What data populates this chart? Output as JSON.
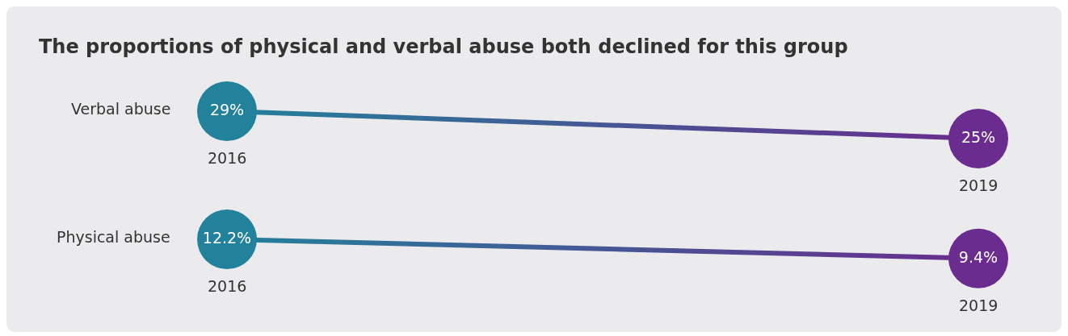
{
  "chart_data": {
    "type": "other",
    "title": "The proportions of physical and verbal abuse both declined for this group",
    "categories": [
      "Verbal abuse",
      "Physical abuse"
    ],
    "series": [
      {
        "name": "2016",
        "color": "#22819b",
        "values": [
          29,
          12.2
        ],
        "value_labels": [
          "29%",
          "12.2%"
        ]
      },
      {
        "name": "2019",
        "color": "#6a2c8e",
        "values": [
          25,
          9.4
        ],
        "value_labels": [
          "25%",
          "9.4%"
        ]
      }
    ]
  }
}
